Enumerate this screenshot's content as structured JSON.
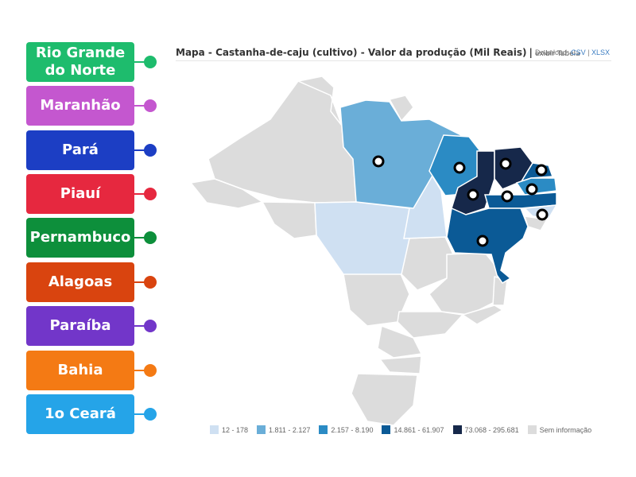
{
  "cards": [
    {
      "label_line1": "Rio Grande",
      "label_line2": "do Norte",
      "color": "#1ebc6d"
    },
    {
      "label_line1": "Maranhão",
      "label_line2": "",
      "color": "#c457cf"
    },
    {
      "label_line1": "Pará",
      "label_line2": "",
      "color": "#1c3ec4"
    },
    {
      "label_line1": "Piauí",
      "label_line2": "",
      "color": "#e6283f"
    },
    {
      "label_line1": "Pernambuco",
      "label_line2": "",
      "color": "#0d8f3b"
    },
    {
      "label_line1": "Alagoas",
      "label_line2": "",
      "color": "#d9440f"
    },
    {
      "label_line1": "Paraíba",
      "label_line2": "",
      "color": "#7236c9"
    },
    {
      "label_line1": "Bahia",
      "label_line2": "",
      "color": "#f47a14"
    },
    {
      "label_line1": "1o Ceará",
      "label_line2": "",
      "color": "#25a4e8"
    }
  ],
  "map": {
    "title": "Mapa - Castanha-de-caju (cultivo) - Valor da produção (Mil Reais)",
    "separator": "|",
    "table_toggle": "exibir Tabela",
    "download_label": "Download:",
    "download_csv": "CSV",
    "download_divider": "|",
    "download_xlsx": "XLSX"
  },
  "legend": [
    {
      "label": "12 - 178",
      "color": "#cfe0f2"
    },
    {
      "label": "1.811 - 2.127",
      "color": "#6aaed8"
    },
    {
      "label": "2.157 - 8.190",
      "color": "#2b8bc4"
    },
    {
      "label": "14.861 - 61.907",
      "color": "#0b5a96"
    },
    {
      "label": "73.068 - 295.681",
      "color": "#16284a"
    },
    {
      "label": "Sem informação",
      "color": "#dcdcdc"
    }
  ]
}
